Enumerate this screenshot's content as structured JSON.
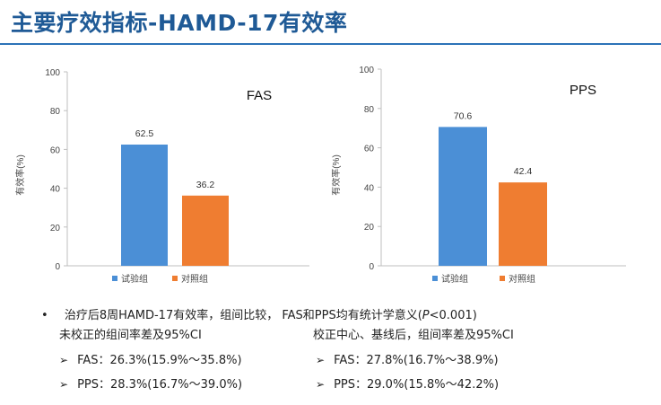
{
  "title": "主要疗效指标-HAMD-17有效率",
  "chart_data": [
    {
      "type": "bar",
      "title": "FAS",
      "ylabel": "有效率(%)",
      "ylim": [
        0,
        100
      ],
      "yticks": [
        "0",
        "20",
        "40",
        "60",
        "80",
        "100"
      ],
      "categories": [
        "试验组",
        "对照组"
      ],
      "values": [
        62.5,
        36.2
      ],
      "value_labels": [
        "62.5",
        "36.2"
      ],
      "colors": [
        "#4b8fd6",
        "#ef7d31"
      ],
      "legend": [
        "试验组",
        "对照组"
      ]
    },
    {
      "type": "bar",
      "title": "PPS",
      "ylabel": "有效率(%)",
      "ylim": [
        0,
        100
      ],
      "yticks": [
        "0",
        "20",
        "40",
        "60",
        "80",
        "100"
      ],
      "categories": [
        "试验组",
        "对照组"
      ],
      "values": [
        70.6,
        42.4
      ],
      "value_labels": [
        "70.6",
        "42.4"
      ],
      "colors": [
        "#4b8fd6",
        "#ef7d31"
      ],
      "legend": [
        "试验组",
        "对照组"
      ]
    }
  ],
  "notes": {
    "bullet": "•",
    "line1": "治疗后8周HAMD-17有效率，组间比较， FAS和PPS均有统计学意义(",
    "p_symbol": "P",
    "line1_end": "<0.001)",
    "left_heading": "未校正的组间率差及95%CI",
    "right_heading": "校正中心、基线后，组间率差及95%CI",
    "arrow": "➢",
    "left_items": [
      "FAS：26.3%(15.9%～35.8%)",
      "PPS：28.3%(16.7%～39.0%)"
    ],
    "right_items": [
      "FAS：27.8%(16.7%～38.9%)",
      "PPS：29.0%(15.8%～42.2%)"
    ]
  }
}
